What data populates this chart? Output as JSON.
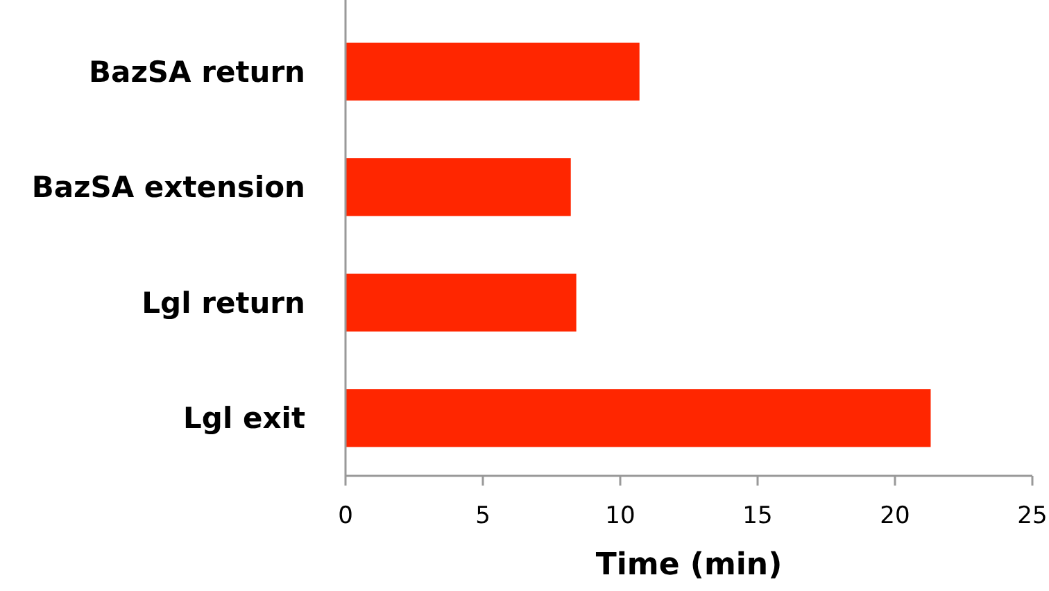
{
  "chart_data": {
    "type": "bar",
    "orientation": "horizontal",
    "xlabel": "Time (min)",
    "categories": [
      "BazSA return",
      "BazSA extension",
      "Lgl return",
      "Lgl exit"
    ],
    "values": [
      10.7,
      8.2,
      8.4,
      21.3
    ],
    "color": "#ff2600",
    "xlim": [
      0,
      25
    ],
    "xticks": [
      0,
      5,
      10,
      15,
      20,
      25
    ],
    "grid": false
  }
}
